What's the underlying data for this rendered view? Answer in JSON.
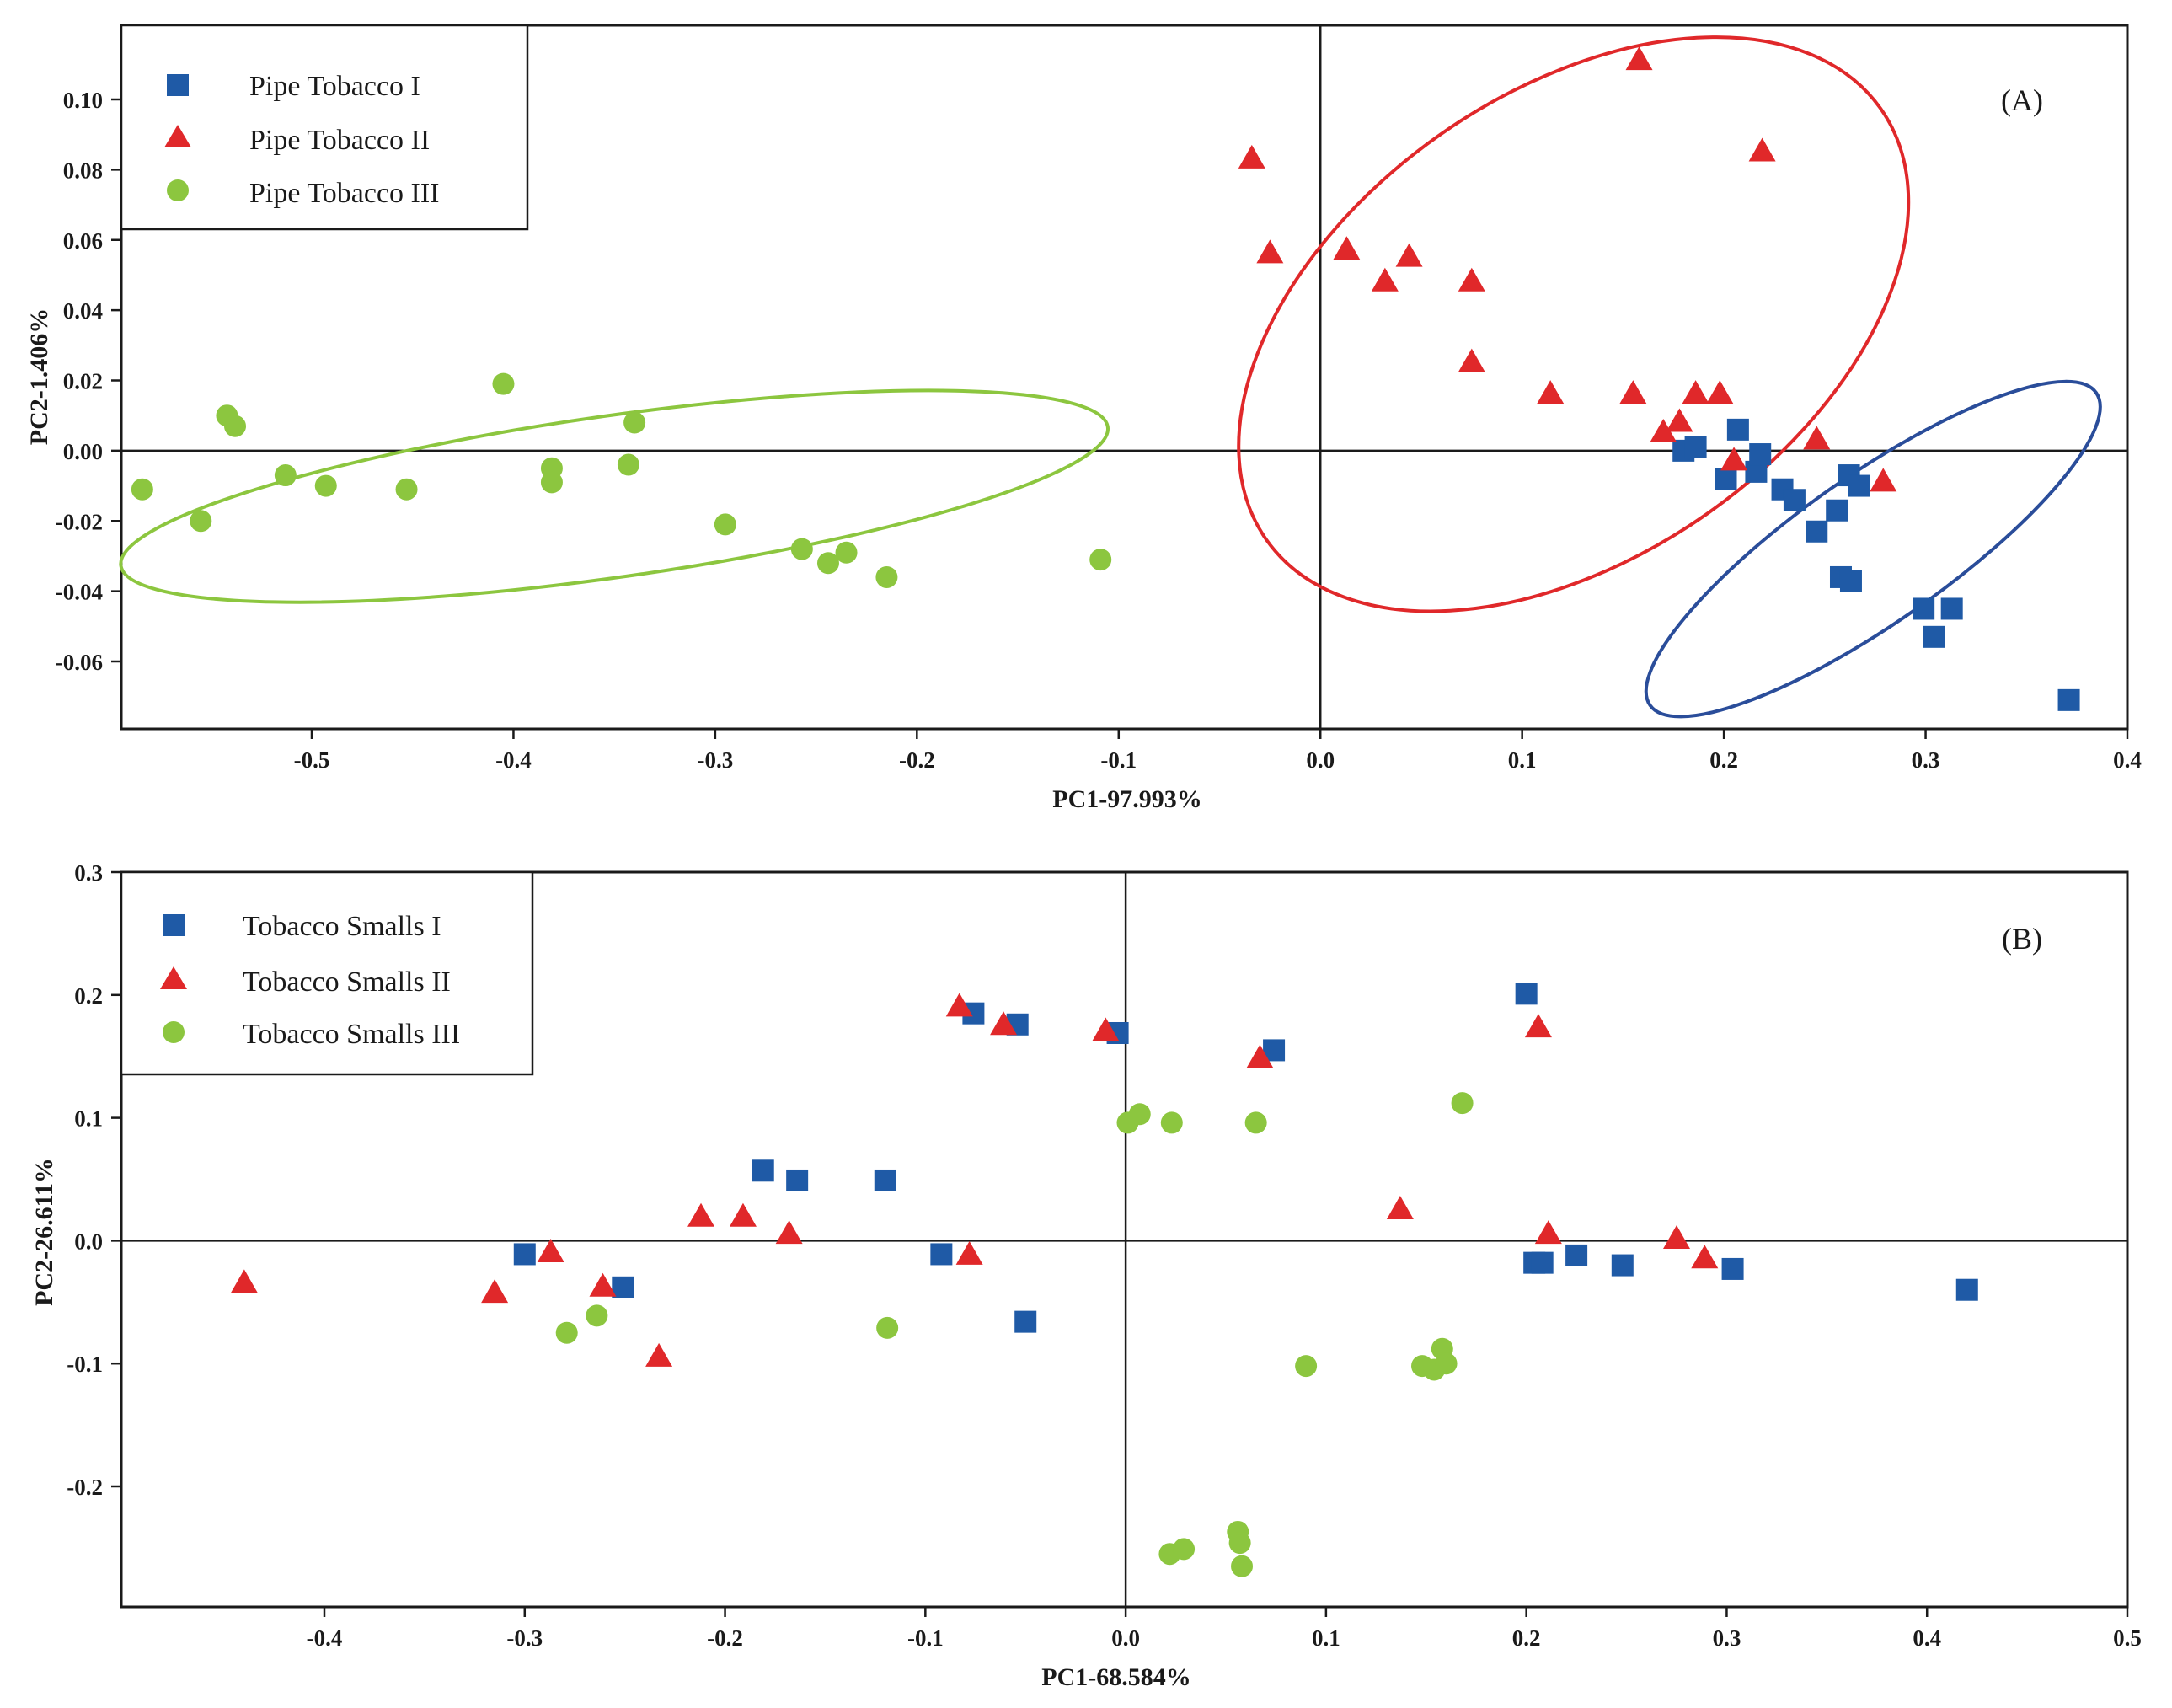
{
  "colors": {
    "blue": "#1f5aa6",
    "red": "#e0282a",
    "green": "#8cc63f",
    "ellipse_blue": "#2a4d9a",
    "ellipse_red": "#e0282a",
    "ellipse_green": "#8cc63f",
    "axis": "#1a1a1a"
  },
  "chart_data": [
    {
      "type": "scatter",
      "panel_label": "(A)",
      "xlabel": "PC1-97.993%",
      "ylabel": "PC2-1.406%",
      "xlim": [
        -0.59,
        0.4
      ],
      "ylim": [
        -0.08,
        0.12
      ],
      "xticks": [
        -0.5,
        -0.4,
        -0.3,
        -0.2,
        -0.1,
        0.0,
        0.1,
        0.2,
        0.3,
        0.4
      ],
      "xtick_labels": [
        "-0.5",
        "-0.4",
        "-0.3",
        "-0.2",
        "-0.1",
        "0.0",
        "0.1",
        "0.2",
        "0.3",
        "0.4"
      ],
      "yticks": [
        -0.06,
        -0.04,
        -0.02,
        0.0,
        0.02,
        0.04,
        0.06,
        0.08,
        0.1
      ],
      "ytick_labels": [
        "-0.06",
        "-0.04",
        "-0.02",
        "0.00",
        "0.02",
        "0.04",
        "0.06",
        "0.08",
        "0.10"
      ],
      "legend_position": "top-left",
      "series": [
        {
          "name": "Pipe Tobacco I",
          "marker": "square",
          "color": "#1f5aa6",
          "points": [
            [
              0.18,
              0.0
            ],
            [
              0.186,
              0.001
            ],
            [
              0.201,
              -0.008
            ],
            [
              0.207,
              0.006
            ],
            [
              0.216,
              -0.006
            ],
            [
              0.218,
              -0.001
            ],
            [
              0.229,
              -0.011
            ],
            [
              0.235,
              -0.014
            ],
            [
              0.246,
              -0.023
            ],
            [
              0.256,
              -0.017
            ],
            [
              0.258,
              -0.036
            ],
            [
              0.263,
              -0.037
            ],
            [
              0.262,
              -0.007
            ],
            [
              0.267,
              -0.01
            ],
            [
              0.299,
              -0.045
            ],
            [
              0.304,
              -0.053
            ],
            [
              0.313,
              -0.045
            ],
            [
              0.371,
              -0.071
            ]
          ]
        },
        {
          "name": "Pipe Tobacco II",
          "marker": "triangle",
          "color": "#e0282a",
          "points": [
            [
              -0.034,
              0.083
            ],
            [
              -0.025,
              0.056
            ],
            [
              0.013,
              0.057
            ],
            [
              0.032,
              0.048
            ],
            [
              0.044,
              0.055
            ],
            [
              0.075,
              0.048
            ],
            [
              0.075,
              0.025
            ],
            [
              0.114,
              0.016
            ],
            [
              0.155,
              0.016
            ],
            [
              0.158,
              0.111
            ],
            [
              0.17,
              0.005
            ],
            [
              0.178,
              0.008
            ],
            [
              0.186,
              0.016
            ],
            [
              0.198,
              0.016
            ],
            [
              0.205,
              -0.003
            ],
            [
              0.219,
              0.085
            ],
            [
              0.246,
              0.003
            ],
            [
              0.279,
              -0.009
            ]
          ]
        },
        {
          "name": "Pipe Tobacco III",
          "marker": "circle",
          "color": "#8cc63f",
          "points": [
            [
              -0.584,
              -0.011
            ],
            [
              -0.555,
              -0.02
            ],
            [
              -0.542,
              0.01
            ],
            [
              -0.538,
              0.007
            ],
            [
              -0.513,
              -0.007
            ],
            [
              -0.493,
              -0.01
            ],
            [
              -0.453,
              -0.011
            ],
            [
              -0.405,
              0.019
            ],
            [
              -0.381,
              -0.005
            ],
            [
              -0.381,
              -0.009
            ],
            [
              -0.343,
              -0.004
            ],
            [
              -0.34,
              0.008
            ],
            [
              -0.295,
              -0.021
            ],
            [
              -0.257,
              -0.028
            ],
            [
              -0.244,
              -0.032
            ],
            [
              -0.235,
              -0.029
            ],
            [
              -0.215,
              -0.036
            ],
            [
              -0.109,
              -0.031
            ]
          ]
        }
      ],
      "ellipses": [
        {
          "color": "#2a4d9a",
          "cx": 0.274,
          "cy": -0.028,
          "rx": 0.135,
          "ry": 0.021,
          "angle_deg": 35
        },
        {
          "color": "#e0282a",
          "cx": 0.1255,
          "cy": 0.036,
          "rx": 0.186,
          "ry": 0.066,
          "angle_deg": 35
        },
        {
          "color": "#8cc63f",
          "cx": -0.35,
          "cy": -0.013,
          "rx": 0.247,
          "ry": 0.023,
          "angle_deg": 8
        }
      ]
    },
    {
      "type": "scatter",
      "panel_label": "(B)",
      "xlabel": "PC1-68.584%",
      "ylabel": "PC2-26.611%",
      "xlim": [
        -0.5,
        0.5
      ],
      "ylim": [
        -0.29,
        0.3
      ],
      "xticks": [
        -0.4,
        -0.3,
        -0.2,
        -0.1,
        0.0,
        0.1,
        0.2,
        0.3,
        0.4,
        0.5
      ],
      "xtick_labels": [
        "-0.4",
        "-0.3",
        "-0.2",
        "-0.1",
        "0.0",
        "0.1",
        "0.2",
        "0.3",
        "0.4",
        "0.5"
      ],
      "yticks": [
        -0.2,
        -0.1,
        0.0,
        0.1,
        0.2,
        0.3
      ],
      "ytick_labels": [
        "-0.2",
        "-0.1",
        "0.0",
        "0.1",
        "0.2",
        "0.3"
      ],
      "legend_position": "top-left",
      "series": [
        {
          "name": "Tobacco Smalls I",
          "marker": "square",
          "color": "#1f5aa6",
          "points": [
            [
              -0.3,
              -0.011
            ],
            [
              -0.251,
              -0.038
            ],
            [
              -0.181,
              0.057
            ],
            [
              -0.164,
              0.049
            ],
            [
              -0.12,
              0.049
            ],
            [
              -0.092,
              -0.011
            ],
            [
              -0.076,
              0.185
            ],
            [
              -0.054,
              0.176
            ],
            [
              -0.05,
              -0.066
            ],
            [
              -0.004,
              0.169
            ],
            [
              0.074,
              0.155
            ],
            [
              0.2,
              0.201
            ],
            [
              0.204,
              -0.018
            ],
            [
              0.208,
              -0.018
            ],
            [
              0.225,
              -0.012
            ],
            [
              0.248,
              -0.02
            ],
            [
              0.303,
              -0.023
            ],
            [
              0.42,
              -0.04
            ]
          ]
        },
        {
          "name": "Tobacco Smalls II",
          "marker": "triangle",
          "color": "#e0282a",
          "points": [
            [
              -0.44,
              -0.035
            ],
            [
              -0.315,
              -0.043
            ],
            [
              -0.287,
              -0.01
            ],
            [
              -0.261,
              -0.038
            ],
            [
              -0.233,
              -0.095
            ],
            [
              -0.212,
              0.019
            ],
            [
              -0.191,
              0.019
            ],
            [
              -0.168,
              0.005
            ],
            [
              -0.083,
              0.19
            ],
            [
              -0.078,
              -0.012
            ],
            [
              -0.061,
              0.175
            ],
            [
              -0.01,
              0.17
            ],
            [
              0.067,
              0.148
            ],
            [
              0.137,
              0.025
            ],
            [
              0.206,
              0.173
            ],
            [
              0.211,
              0.005
            ],
            [
              0.275,
              0.001
            ],
            [
              0.289,
              -0.015
            ]
          ]
        },
        {
          "name": "Tobacco Smalls III",
          "marker": "circle",
          "color": "#8cc63f",
          "points": [
            [
              -0.279,
              -0.075
            ],
            [
              -0.264,
              -0.061
            ],
            [
              -0.119,
              -0.071
            ],
            [
              0.001,
              0.096
            ],
            [
              0.007,
              0.103
            ],
            [
              0.023,
              0.096
            ],
            [
              0.065,
              0.096
            ],
            [
              0.168,
              0.112
            ],
            [
              0.022,
              -0.255
            ],
            [
              0.029,
              -0.251
            ],
            [
              0.056,
              -0.237
            ],
            [
              0.057,
              -0.246
            ],
            [
              0.058,
              -0.265
            ],
            [
              0.09,
              -0.102
            ],
            [
              0.148,
              -0.102
            ],
            [
              0.154,
              -0.105
            ],
            [
              0.158,
              -0.088
            ],
            [
              0.16,
              -0.1
            ]
          ]
        }
      ]
    }
  ]
}
